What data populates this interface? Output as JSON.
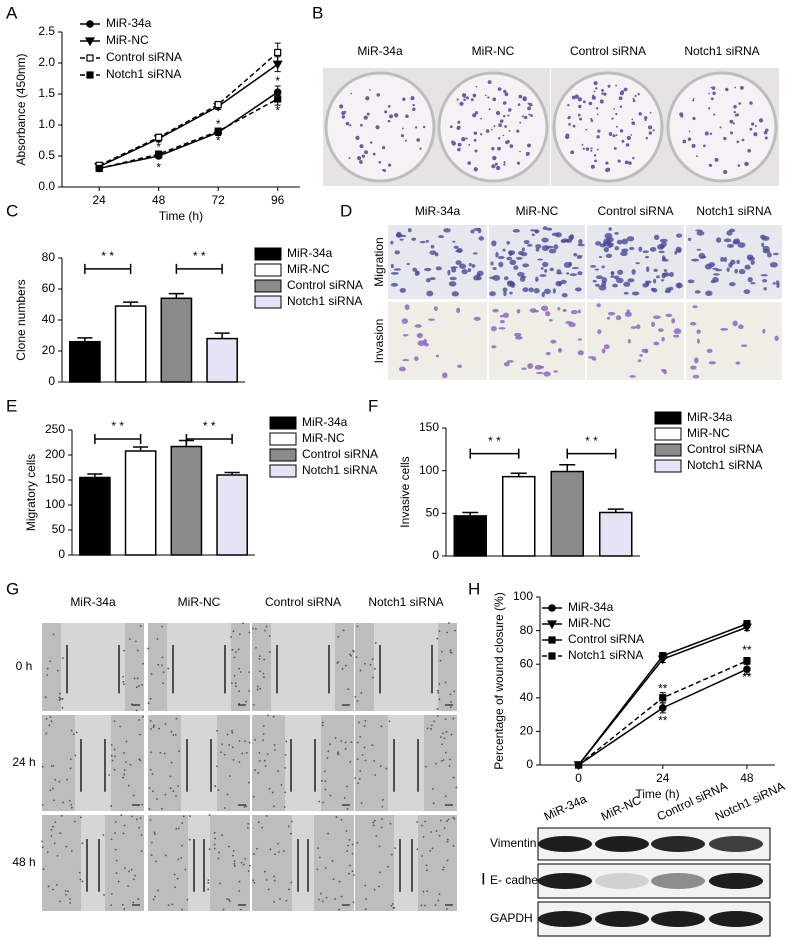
{
  "chart_data": [
    {
      "type": "line",
      "label": "A",
      "xlabel": "Time (h)",
      "ylabel": "Absorbance (450nm)",
      "x": [
        24,
        48,
        72,
        96
      ],
      "xlim": [
        9,
        105
      ],
      "xticks": [
        24,
        48,
        72,
        96
      ],
      "ylim": [
        0,
        2.5
      ],
      "yticks": [
        {
          "value": 0,
          "label": "0.0"
        },
        {
          "value": 0.5,
          "label": "0.5"
        },
        {
          "value": 1,
          "label": "1.0"
        },
        {
          "value": 1.5,
          "label": "1.5"
        },
        {
          "value": 2,
          "label": "2.0"
        },
        {
          "value": 2.5,
          "label": "2.5"
        }
      ],
      "series": [
        {
          "name": "MiR-34a",
          "color": "#000000",
          "marker": "circle",
          "dash": "none",
          "values": [
            0.3,
            0.5,
            0.88,
            1.53
          ],
          "errors": [
            0.03,
            0.04,
            0.05,
            0.1
          ]
        },
        {
          "name": "MiR-NC",
          "color": "#000000",
          "marker": "triangle-down",
          "dash": "none",
          "values": [
            0.33,
            0.78,
            1.3,
            1.98
          ],
          "errors": [
            0.03,
            0.05,
            0.05,
            0.12
          ]
        },
        {
          "name": "Control siRNA",
          "color": "#000000",
          "marker": "square-open",
          "dash": "5,3",
          "values": [
            0.35,
            0.8,
            1.33,
            2.17
          ],
          "errors": [
            0.03,
            0.05,
            0.05,
            0.15
          ]
        },
        {
          "name": "Notch1 siRNA",
          "color": "#000000",
          "marker": "square",
          "dash": "5,3",
          "values": [
            0.3,
            0.53,
            0.9,
            1.42
          ],
          "errors": [
            0.03,
            0.04,
            0.05,
            0.1
          ]
        }
      ],
      "annotations": [
        {
          "text": "*",
          "x": 48,
          "y": 0.63
        },
        {
          "text": "*",
          "x": 48,
          "y": 0.3
        },
        {
          "text": "*",
          "x": 72,
          "y": 1.0
        },
        {
          "text": "*",
          "x": 72,
          "y": 0.74
        },
        {
          "text": "*",
          "x": 96,
          "y": 1.7
        },
        {
          "text": "*",
          "x": 96,
          "y": 1.22
        }
      ]
    },
    {
      "type": "bar",
      "label": "C",
      "ylabel": "Clone numbers",
      "ylim": [
        0,
        80
      ],
      "yticks": [
        0,
        20,
        40,
        60,
        80
      ],
      "series": [
        {
          "name": "MiR-34a",
          "color": "#000000",
          "values": [
            26
          ],
          "errors": [
            2.5
          ]
        },
        {
          "name": "MiR-NC",
          "color": "#ffffff",
          "values": [
            49
          ],
          "errors": [
            2.5
          ]
        },
        {
          "name": "Control siRNA",
          "color": "#8a8a8a",
          "values": [
            54
          ],
          "errors": [
            3
          ]
        },
        {
          "name": "Notch1 siRNA",
          "color": "#e4e4f6",
          "values": [
            28
          ],
          "errors": [
            3.5
          ]
        }
      ],
      "annotations": [
        {
          "text": "* *",
          "from": 0,
          "to": 1,
          "y": 73
        },
        {
          "text": "* *",
          "from": 2,
          "to": 3,
          "y": 73
        }
      ]
    },
    {
      "type": "bar",
      "label": "E",
      "ylabel": "Migratory cells",
      "ylim": [
        0,
        250
      ],
      "yticks": [
        0,
        50,
        100,
        150,
        200,
        250
      ],
      "series": [
        {
          "name": "MiR-34a",
          "color": "#000000",
          "values": [
            155
          ],
          "errors": [
            7
          ]
        },
        {
          "name": "MiR-NC",
          "color": "#ffffff",
          "values": [
            208
          ],
          "errors": [
            8
          ]
        },
        {
          "name": "Control siRNA",
          "color": "#8a8a8a",
          "values": [
            217
          ],
          "errors": [
            12
          ]
        },
        {
          "name": "Notch1 siRNA",
          "color": "#e4e4f6",
          "values": [
            160
          ],
          "errors": [
            5
          ]
        }
      ],
      "annotations": [
        {
          "text": "* *",
          "from": 0,
          "to": 1,
          "y": 232
        },
        {
          "text": "* *",
          "from": 2,
          "to": 3,
          "y": 232
        }
      ]
    },
    {
      "type": "bar",
      "label": "F",
      "ylabel": "Invasive cells",
      "ylim": [
        0,
        150
      ],
      "yticks": [
        0,
        50,
        100,
        150
      ],
      "series": [
        {
          "name": "MiR-34a",
          "color": "#000000",
          "values": [
            47
          ],
          "errors": [
            4
          ]
        },
        {
          "name": "MiR-NC",
          "color": "#ffffff",
          "values": [
            93
          ],
          "errors": [
            4
          ]
        },
        {
          "name": "Control siRNA",
          "color": "#8a8a8a",
          "values": [
            99
          ],
          "errors": [
            8
          ]
        },
        {
          "name": "Notch1 siRNA",
          "color": "#e4e4f6",
          "values": [
            51
          ],
          "errors": [
            4
          ]
        }
      ],
      "annotations": [
        {
          "text": "* *",
          "from": 0,
          "to": 1,
          "y": 120
        },
        {
          "text": "* *",
          "from": 2,
          "to": 3,
          "y": 120
        }
      ]
    },
    {
      "type": "line",
      "label": "H",
      "xlabel": "Time (h)",
      "ylabel": "Percentage of wound closure (%)",
      "x": [
        0,
        24,
        48
      ],
      "xlim": [
        -11,
        56
      ],
      "xticks": [
        0,
        24,
        48
      ],
      "ylim": [
        0,
        100
      ],
      "yticks": [
        0,
        20,
        40,
        60,
        80,
        100
      ],
      "series": [
        {
          "name": "MiR-34a",
          "color": "#000000",
          "marker": "circle",
          "dash": "none",
          "values": [
            0,
            34,
            57
          ],
          "errors": [
            0,
            3,
            3
          ]
        },
        {
          "name": "MiR-NC",
          "color": "#000000",
          "marker": "triangle-down",
          "dash": "none",
          "values": [
            0,
            63,
            82
          ],
          "errors": [
            0,
            2,
            2
          ]
        },
        {
          "name": "Control siRNA",
          "color": "#000000",
          "marker": "square",
          "dash": "none",
          "values": [
            0,
            65,
            84
          ],
          "errors": [
            0,
            2,
            2
          ]
        },
        {
          "name": "Notch1 siRNA",
          "color": "#000000",
          "marker": "square",
          "dash": "5,3",
          "values": [
            0,
            40,
            62
          ],
          "errors": [
            0,
            3,
            2
          ]
        }
      ],
      "annotations": [
        {
          "text": "**",
          "x": 24,
          "y": 45
        },
        {
          "text": "**",
          "x": 24,
          "y": 26
        },
        {
          "text": "**",
          "x": 48,
          "y": 68
        },
        {
          "text": "**",
          "x": 48,
          "y": 52
        }
      ]
    }
  ],
  "images": [
    {
      "label": "B",
      "columns": [
        "MiR-34a",
        "MiR-NC",
        "Control siRNA",
        "Notch1 siRNA"
      ]
    },
    {
      "label": "D",
      "columns": [
        "MiR-34a",
        "MiR-NC",
        "Control siRNA",
        "Notch1 siRNA"
      ],
      "rows": [
        "Migration",
        "Invasion"
      ]
    },
    {
      "label": "G",
      "columns": [
        "MiR-34a",
        "MiR-NC",
        "Control siRNA",
        "Notch1 siRNA"
      ],
      "rows": [
        "0 h",
        "24 h",
        "48 h"
      ]
    },
    {
      "label": "I",
      "columns": [
        "MiR-34a",
        "MiR-NC",
        "Control siRNA",
        "Notch1 siRNA"
      ],
      "rows": [
        "Vimentin",
        "E- cadherin",
        "GAPDH"
      ]
    }
  ]
}
